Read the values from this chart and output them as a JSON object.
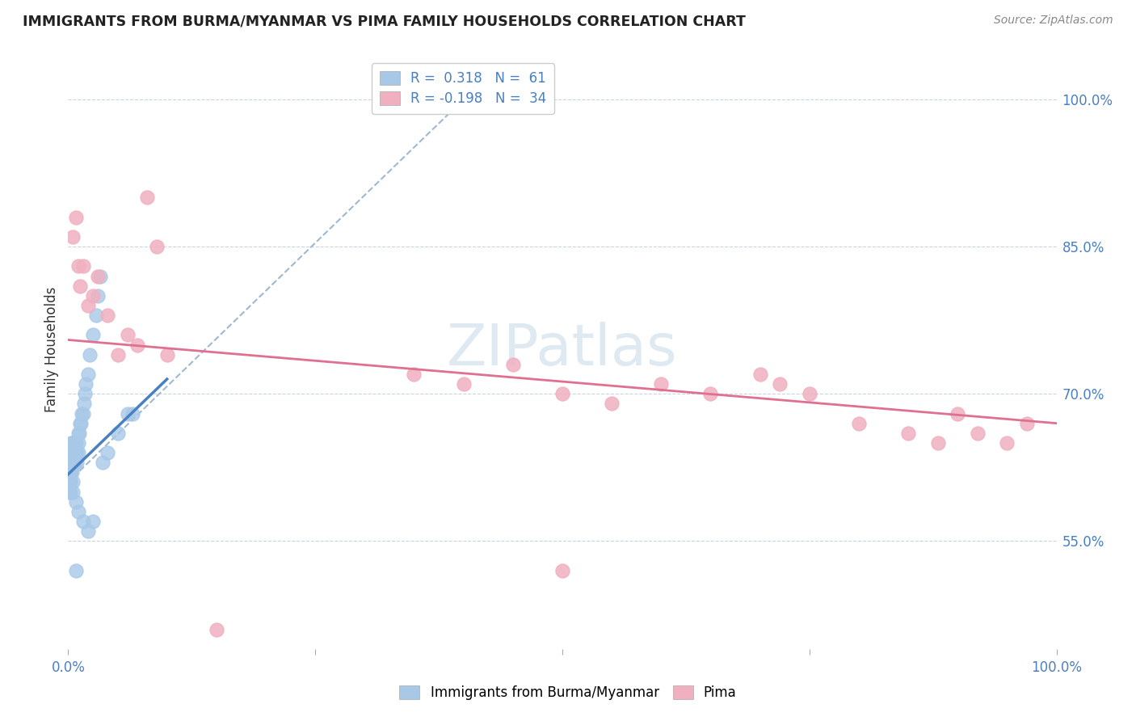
{
  "title": "IMMIGRANTS FROM BURMA/MYANMAR VS PIMA FAMILY HOUSEHOLDS CORRELATION CHART",
  "source": "Source: ZipAtlas.com",
  "ylabel": "Family Households",
  "ylabel_right_labels": [
    "55.0%",
    "70.0%",
    "85.0%",
    "100.0%"
  ],
  "ylabel_right_values": [
    0.55,
    0.7,
    0.85,
    1.0
  ],
  "xlim": [
    0.0,
    1.0
  ],
  "ylim": [
    0.44,
    1.05
  ],
  "R_blue": 0.318,
  "N_blue": 61,
  "R_pink": -0.198,
  "N_pink": 34,
  "blue_color": "#a8c8e8",
  "pink_color": "#f0b0c0",
  "blue_line_color": "#4a7fc0",
  "pink_line_color": "#e07090",
  "dashed_line_color": "#a0b8d0",
  "watermark": "ZIPatlas",
  "blue_scatter_x": [
    0.001,
    0.001,
    0.001,
    0.001,
    0.001,
    0.002,
    0.002,
    0.002,
    0.002,
    0.002,
    0.003,
    0.003,
    0.003,
    0.003,
    0.004,
    0.004,
    0.004,
    0.004,
    0.005,
    0.005,
    0.005,
    0.005,
    0.006,
    0.006,
    0.006,
    0.007,
    0.007,
    0.007,
    0.008,
    0.008,
    0.009,
    0.009,
    0.01,
    0.01,
    0.01,
    0.011,
    0.012,
    0.013,
    0.014,
    0.015,
    0.016,
    0.017,
    0.018,
    0.02,
    0.022,
    0.025,
    0.028,
    0.03,
    0.032,
    0.005,
    0.008,
    0.01,
    0.015,
    0.02,
    0.025,
    0.035,
    0.04,
    0.05,
    0.06,
    0.065,
    0.008
  ],
  "blue_scatter_y": [
    0.62,
    0.63,
    0.64,
    0.61,
    0.6,
    0.62,
    0.63,
    0.61,
    0.64,
    0.6,
    0.63,
    0.64,
    0.62,
    0.65,
    0.64,
    0.63,
    0.65,
    0.62,
    0.64,
    0.63,
    0.61,
    0.65,
    0.64,
    0.63,
    0.65,
    0.64,
    0.65,
    0.63,
    0.65,
    0.64,
    0.63,
    0.64,
    0.65,
    0.64,
    0.66,
    0.66,
    0.67,
    0.67,
    0.68,
    0.68,
    0.69,
    0.7,
    0.71,
    0.72,
    0.74,
    0.76,
    0.78,
    0.8,
    0.82,
    0.6,
    0.59,
    0.58,
    0.57,
    0.56,
    0.57,
    0.63,
    0.64,
    0.66,
    0.68,
    0.68,
    0.52
  ],
  "pink_scatter_x": [
    0.005,
    0.008,
    0.01,
    0.012,
    0.015,
    0.02,
    0.025,
    0.03,
    0.04,
    0.05,
    0.06,
    0.07,
    0.08,
    0.09,
    0.1,
    0.15,
    0.35,
    0.4,
    0.45,
    0.5,
    0.55,
    0.6,
    0.65,
    0.7,
    0.72,
    0.75,
    0.8,
    0.85,
    0.88,
    0.9,
    0.92,
    0.95,
    0.97,
    0.5
  ],
  "pink_scatter_y": [
    0.86,
    0.88,
    0.83,
    0.81,
    0.83,
    0.79,
    0.8,
    0.82,
    0.78,
    0.74,
    0.76,
    0.75,
    0.9,
    0.85,
    0.74,
    0.46,
    0.72,
    0.71,
    0.73,
    0.7,
    0.69,
    0.71,
    0.7,
    0.72,
    0.71,
    0.7,
    0.67,
    0.66,
    0.65,
    0.68,
    0.66,
    0.65,
    0.67,
    0.52
  ],
  "blue_trend_x": [
    0.0,
    0.1
  ],
  "blue_trend_y_start": 0.618,
  "blue_trend_y_end": 0.715,
  "pink_trend_x": [
    0.0,
    1.0
  ],
  "pink_trend_y_start": 0.755,
  "pink_trend_y_end": 0.67,
  "dashed_trend_x": [
    0.005,
    0.4
  ],
  "dashed_trend_y_start": 0.615,
  "dashed_trend_y_end": 1.0
}
